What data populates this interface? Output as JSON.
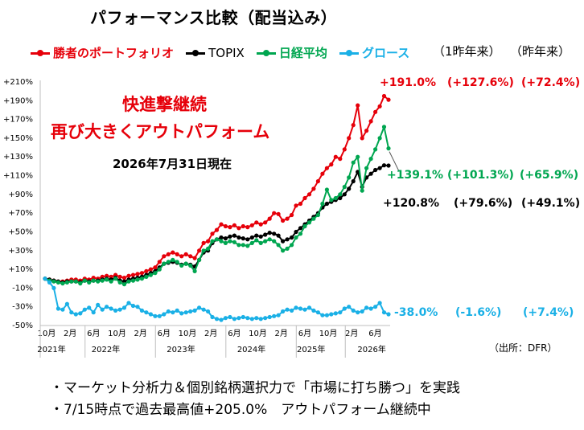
{
  "title": "パフォーマンス比較（配当込み）",
  "legend": [
    {
      "label": "勝者のポートフォリオ",
      "color": "#e6000a"
    },
    {
      "label": "TOPIX",
      "color": "#000000"
    },
    {
      "label": "日経平均",
      "color": "#00a650"
    },
    {
      "label": "グロース",
      "color": "#1ab0e6"
    }
  ],
  "period_headers": {
    "one_year_ago": "（1昨年来）",
    "last_year": "（昨年来）"
  },
  "notes": {
    "line1": "快進撃継続",
    "line2": "再び大きくアウトパフォーム",
    "as_of": "2026年7月31日現在"
  },
  "end_values": {
    "winner": {
      "total": "+191.0%",
      "since_2yr": "(+127.6%)",
      "since_1yr": "(+72.4%)"
    },
    "nikkei": {
      "total": "+139.1%",
      "since_2yr": "(+101.3%)",
      "since_1yr": "(+65.9%)"
    },
    "topix": {
      "total": "+120.8%",
      "since_2yr": "(+79.6%)",
      "since_1yr": "(+49.1%)"
    },
    "growth": {
      "total": "-38.0%",
      "since_2yr": "(-1.6%)",
      "since_1yr": "(+7.4%)"
    }
  },
  "source": "（出所：DFR）",
  "bullets": [
    "・マーケット分析力＆個別銘柄選択力で「市場に打ち勝つ」を実践",
    "・7/15時点で過去最高値+205.0%　アウトパフォーム継続中"
  ],
  "chart_data": {
    "type": "line",
    "ylim": [
      -50,
      210
    ],
    "y_ticks": [
      "+210%",
      "+190%",
      "+170%",
      "+150%",
      "+130%",
      "+110%",
      "+90%",
      "+70%",
      "+50%",
      "+30%",
      "+10%",
      "-10%",
      "-30%",
      "-50%"
    ],
    "x_tick_labels": [
      "10月",
      "2月",
      "6月",
      "10月",
      "2月",
      "6月",
      "10月",
      "2月",
      "6月",
      "10月",
      "2月",
      "6月",
      "10月",
      "2月",
      "6月"
    ],
    "year_labels": [
      "2021年",
      "2022年",
      "2023年",
      "2024年",
      "2025年",
      "2026年"
    ],
    "grid": false,
    "series": [
      {
        "name": "勝者のポートフォリオ",
        "color": "#e6000a",
        "values": [
          0,
          -1,
          -2,
          -3,
          -3,
          -2,
          -1,
          -1,
          -2,
          0,
          -1,
          1,
          0,
          2,
          3,
          2,
          4,
          2,
          1,
          3,
          4,
          5,
          6,
          8,
          10,
          12,
          18,
          24,
          26,
          28,
          26,
          24,
          26,
          24,
          22,
          30,
          38,
          40,
          48,
          52,
          58,
          56,
          55,
          57,
          54,
          56,
          55,
          57,
          60,
          58,
          60,
          64,
          70,
          69,
          62,
          64,
          68,
          78,
          80,
          86,
          90,
          96,
          104,
          112,
          118,
          122,
          130,
          128,
          138,
          150,
          164,
          185,
          150,
          158,
          168,
          178,
          184,
          195,
          191
        ]
      },
      {
        "name": "TOPIX",
        "color": "#000000",
        "values": [
          0,
          -1,
          -2,
          -3,
          -4,
          -3,
          -3,
          -3,
          -4,
          -2,
          -3,
          -2,
          -2,
          -1,
          0,
          -1,
          1,
          -2,
          -3,
          -1,
          0,
          1,
          2,
          4,
          6,
          8,
          12,
          16,
          17,
          18,
          17,
          15,
          16,
          15,
          13,
          20,
          28,
          30,
          38,
          42,
          44,
          43,
          45,
          46,
          44,
          43,
          42,
          44,
          46,
          45,
          47,
          49,
          48,
          46,
          40,
          42,
          44,
          50,
          54,
          58,
          62,
          66,
          70,
          76,
          80,
          82,
          84,
          86,
          90,
          96,
          104,
          114,
          98,
          108,
          112,
          116,
          118,
          121,
          120.8
        ]
      },
      {
        "name": "日経平均",
        "color": "#00a650",
        "values": [
          0,
          -2,
          -3,
          -4,
          -5,
          -4,
          -3,
          -3,
          -5,
          -2,
          -4,
          -2,
          -3,
          -2,
          -1,
          -3,
          0,
          -4,
          -6,
          -3,
          -2,
          -1,
          0,
          2,
          4,
          6,
          10,
          16,
          18,
          20,
          18,
          14,
          16,
          14,
          8,
          20,
          30,
          32,
          40,
          42,
          40,
          38,
          40,
          39,
          36,
          36,
          35,
          38,
          41,
          38,
          40,
          42,
          40,
          36,
          30,
          32,
          36,
          44,
          48,
          56,
          60,
          64,
          68,
          80,
          95,
          84,
          86,
          90,
          98,
          108,
          124,
          130,
          94,
          118,
          128,
          138,
          150,
          162,
          139.1
        ]
      },
      {
        "name": "グロース",
        "color": "#1ab0e6",
        "values": [
          0,
          -4,
          -10,
          -32,
          -33,
          -27,
          -36,
          -38,
          -37,
          -33,
          -31,
          -36,
          -28,
          -33,
          -30,
          -32,
          -34,
          -33,
          -31,
          -26,
          -29,
          -30,
          -34,
          -36,
          -38,
          -40,
          -40,
          -38,
          -35,
          -36,
          -34,
          -37,
          -36,
          -35,
          -34,
          -31,
          -33,
          -35,
          -41,
          -43,
          -44,
          -42,
          -41,
          -43,
          -42,
          -41,
          -42,
          -43,
          -42,
          -43,
          -42,
          -41,
          -40,
          -39,
          -35,
          -33,
          -34,
          -31,
          -32,
          -33,
          -31,
          -34,
          -36,
          -39,
          -39,
          -38,
          -37,
          -36,
          -32,
          -30,
          -34,
          -36,
          -35,
          -31,
          -32,
          -30,
          -26,
          -36,
          -38.0
        ]
      }
    ]
  }
}
